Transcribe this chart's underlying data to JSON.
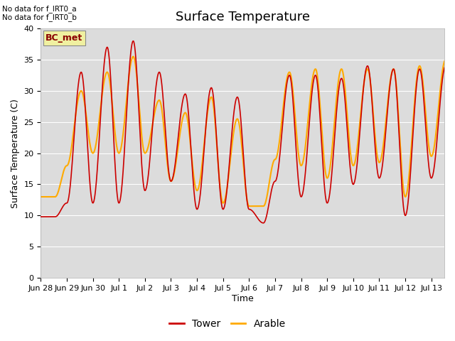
{
  "title": "Surface Temperature",
  "ylabel": "Surface Temperature (C)",
  "xlabel": "Time",
  "annotation_line1": "No data for f_IRT0_a",
  "annotation_line2": "No data for f_IRT0_b",
  "bc_met_label": "BC_met",
  "legend_entries": [
    "Tower",
    "Arable"
  ],
  "tower_color": "#cc0000",
  "arable_color": "#ffaa00",
  "ylim": [
    0,
    40
  ],
  "yticks": [
    0,
    5,
    10,
    15,
    20,
    25,
    30,
    35,
    40
  ],
  "background_color": "#dcdcdc",
  "x_tick_labels": [
    "Jun 28",
    "Jun 29",
    "Jun 30",
    "Jul 1",
    "Jul 2",
    "Jul 3",
    "Jul 4",
    "Jul 5",
    "Jul 6",
    "Jul 7",
    "Jul 8",
    "Jul 9",
    "Jul 10",
    "Jul 11",
    "Jul 12",
    "Jul 13"
  ],
  "title_fontsize": 13,
  "axis_label_fontsize": 9,
  "tick_fontsize": 8
}
